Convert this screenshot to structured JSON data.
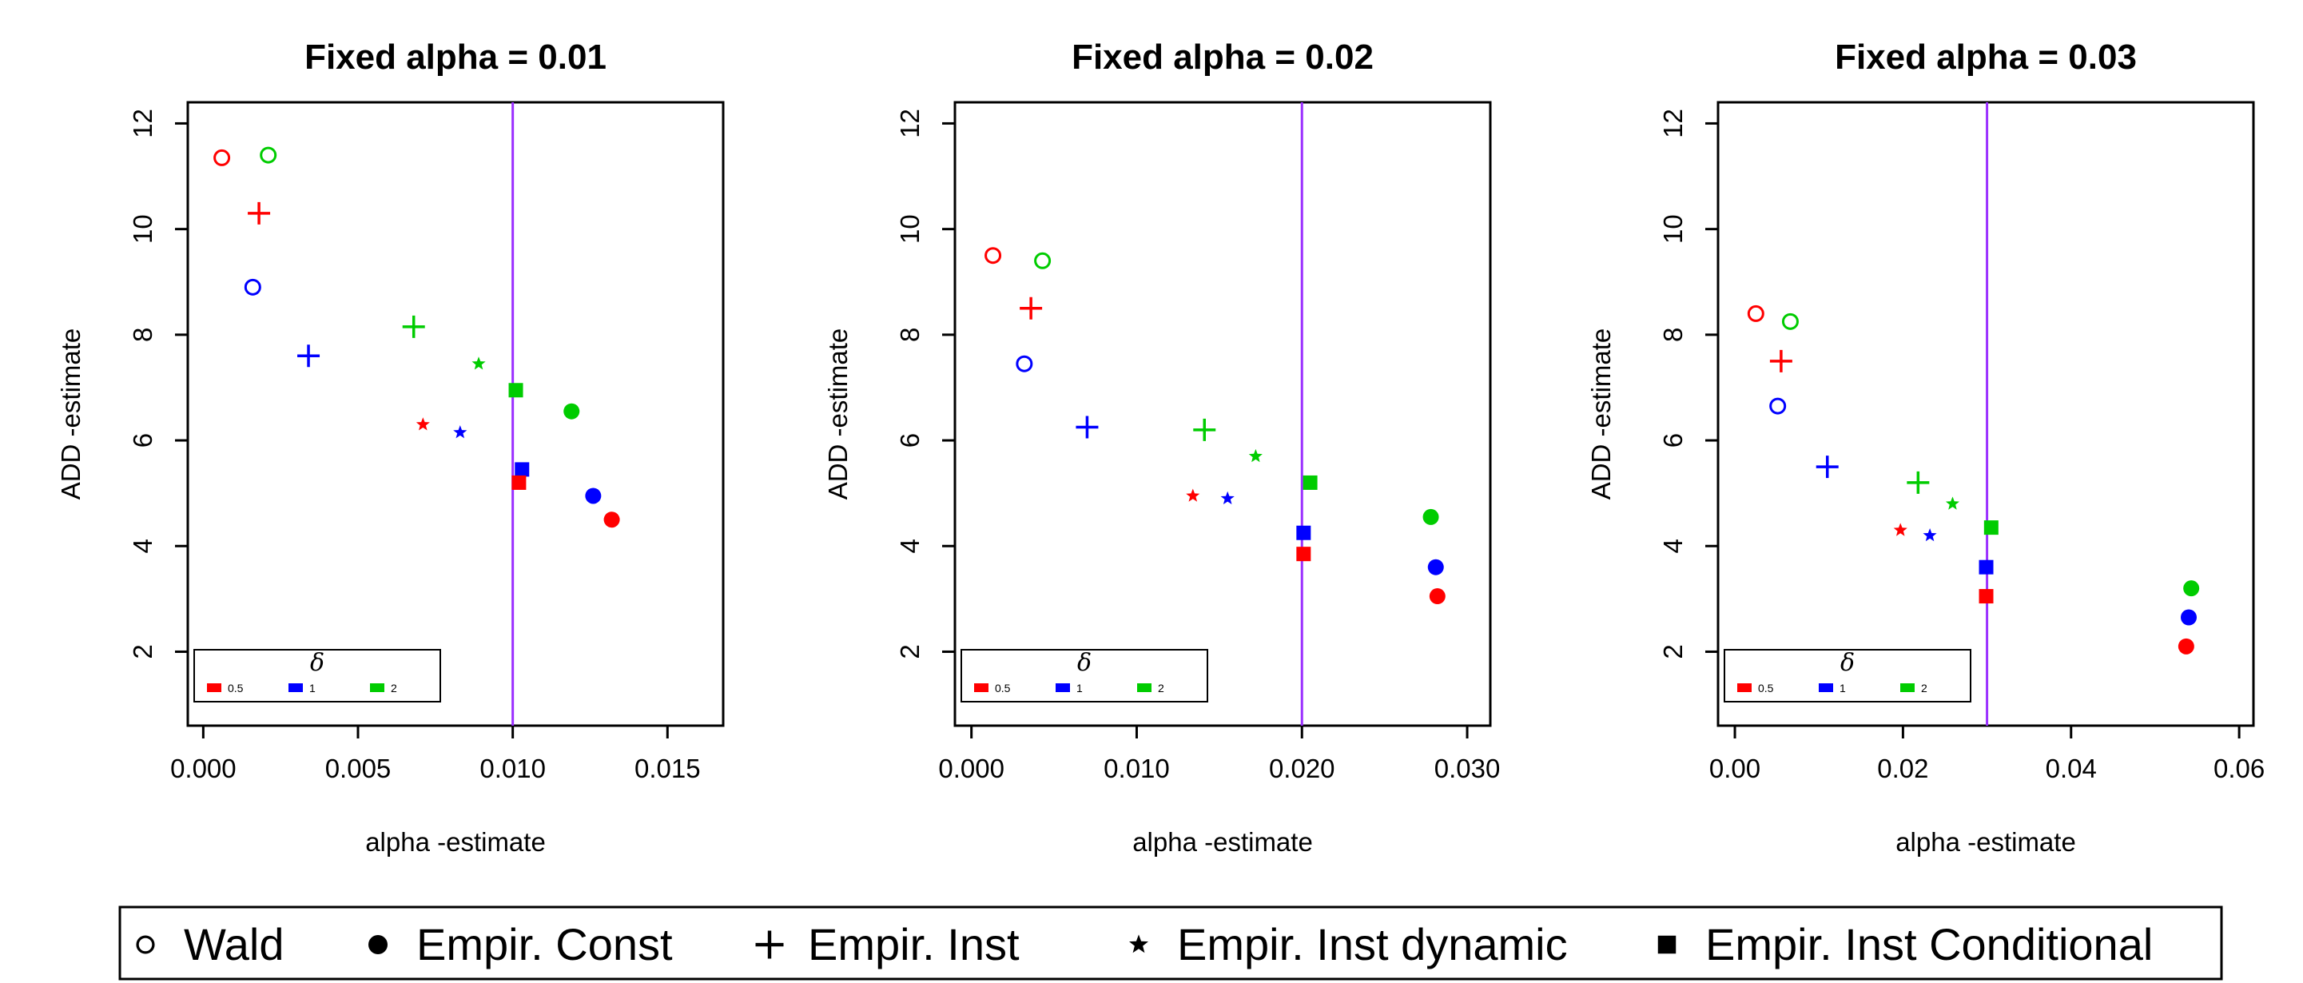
{
  "chart_data": [
    {
      "type": "scatter",
      "title": "Fixed alpha = 0.01",
      "xlabel": "alpha -estimate",
      "ylabel": "ADD -estimate",
      "xlim": [
        -0.0005,
        0.0168
      ],
      "ylim": [
        0.6,
        12.4
      ],
      "xticks": [
        "0.000",
        "0.005",
        "0.010",
        "0.015"
      ],
      "xtick_values": [
        0,
        0.005,
        0.01,
        0.015
      ],
      "yticks": [
        "2",
        "4",
        "6",
        "8",
        "10",
        "12"
      ],
      "ytick_values": [
        2,
        4,
        6,
        8,
        10,
        12
      ],
      "vline": 0.01,
      "points": [
        {
          "method": "Wald",
          "delta": "0.5",
          "x": 0.0006,
          "y": 11.35
        },
        {
          "method": "Wald",
          "delta": "2",
          "x": 0.0021,
          "y": 11.4
        },
        {
          "method": "Wald",
          "delta": "1",
          "x": 0.0016,
          "y": 8.9
        },
        {
          "method": "Empir. Inst",
          "delta": "0.5",
          "x": 0.0018,
          "y": 10.3
        },
        {
          "method": "Empir. Inst",
          "delta": "1",
          "x": 0.0034,
          "y": 7.6
        },
        {
          "method": "Empir. Inst",
          "delta": "2",
          "x": 0.0068,
          "y": 8.15
        },
        {
          "method": "Empir. Inst dynamic",
          "delta": "2",
          "x": 0.0089,
          "y": 7.45
        },
        {
          "method": "Empir. Inst dynamic",
          "delta": "0.5",
          "x": 0.0071,
          "y": 6.3
        },
        {
          "method": "Empir. Inst dynamic",
          "delta": "1",
          "x": 0.0083,
          "y": 6.15
        },
        {
          "method": "Empir. Inst Conditional",
          "delta": "2",
          "x": 0.0101,
          "y": 6.95
        },
        {
          "method": "Empir. Inst Conditional",
          "delta": "1",
          "x": 0.0103,
          "y": 5.45
        },
        {
          "method": "Empir. Inst Conditional",
          "delta": "0.5",
          "x": 0.0102,
          "y": 5.2
        },
        {
          "method": "Empir. Const",
          "delta": "2",
          "x": 0.0119,
          "y": 6.55
        },
        {
          "method": "Empir. Const",
          "delta": "1",
          "x": 0.0126,
          "y": 4.95
        },
        {
          "method": "Empir. Const",
          "delta": "0.5",
          "x": 0.0132,
          "y": 4.5
        }
      ]
    },
    {
      "type": "scatter",
      "title": "Fixed alpha = 0.02",
      "xlabel": "alpha -estimate",
      "ylabel": "ADD -estimate",
      "xlim": [
        -0.001,
        0.0314
      ],
      "ylim": [
        0.6,
        12.4
      ],
      "xticks": [
        "0.000",
        "0.010",
        "0.020",
        "0.030"
      ],
      "xtick_values": [
        0,
        0.01,
        0.02,
        0.03
      ],
      "yticks": [
        "2",
        "4",
        "6",
        "8",
        "10",
        "12"
      ],
      "ytick_values": [
        2,
        4,
        6,
        8,
        10,
        12
      ],
      "vline": 0.02,
      "points": [
        {
          "method": "Wald",
          "delta": "0.5",
          "x": 0.0013,
          "y": 9.5
        },
        {
          "method": "Wald",
          "delta": "2",
          "x": 0.0043,
          "y": 9.4
        },
        {
          "method": "Wald",
          "delta": "1",
          "x": 0.0032,
          "y": 7.45
        },
        {
          "method": "Empir. Inst",
          "delta": "0.5",
          "x": 0.0036,
          "y": 8.5
        },
        {
          "method": "Empir. Inst",
          "delta": "1",
          "x": 0.007,
          "y": 6.25
        },
        {
          "method": "Empir. Inst",
          "delta": "2",
          "x": 0.0141,
          "y": 6.2
        },
        {
          "method": "Empir. Inst dynamic",
          "delta": "2",
          "x": 0.0172,
          "y": 5.7
        },
        {
          "method": "Empir. Inst dynamic",
          "delta": "0.5",
          "x": 0.0134,
          "y": 4.95
        },
        {
          "method": "Empir. Inst dynamic",
          "delta": "1",
          "x": 0.0155,
          "y": 4.9
        },
        {
          "method": "Empir. Inst Conditional",
          "delta": "2",
          "x": 0.0205,
          "y": 5.2
        },
        {
          "method": "Empir. Inst Conditional",
          "delta": "1",
          "x": 0.0201,
          "y": 4.25
        },
        {
          "method": "Empir. Inst Conditional",
          "delta": "0.5",
          "x": 0.0201,
          "y": 3.85
        },
        {
          "method": "Empir. Const",
          "delta": "2",
          "x": 0.0278,
          "y": 4.55
        },
        {
          "method": "Empir. Const",
          "delta": "1",
          "x": 0.0281,
          "y": 3.6
        },
        {
          "method": "Empir. Const",
          "delta": "0.5",
          "x": 0.0282,
          "y": 3.05
        }
      ]
    },
    {
      "type": "scatter",
      "title": "Fixed alpha = 0.03",
      "xlabel": "alpha -estimate",
      "ylabel": "ADD -estimate",
      "xlim": [
        -0.002,
        0.0617
      ],
      "ylim": [
        0.6,
        12.4
      ],
      "xticks": [
        "0.00",
        "0.02",
        "0.04",
        "0.06"
      ],
      "xtick_values": [
        0,
        0.02,
        0.04,
        0.06
      ],
      "yticks": [
        "2",
        "4",
        "6",
        "8",
        "10",
        "12"
      ],
      "ytick_values": [
        2,
        4,
        6,
        8,
        10,
        12
      ],
      "vline": 0.03,
      "points": [
        {
          "method": "Wald",
          "delta": "0.5",
          "x": 0.0025,
          "y": 8.4
        },
        {
          "method": "Wald",
          "delta": "2",
          "x": 0.0066,
          "y": 8.25
        },
        {
          "method": "Wald",
          "delta": "1",
          "x": 0.0051,
          "y": 6.65
        },
        {
          "method": "Empir. Inst",
          "delta": "0.5",
          "x": 0.0055,
          "y": 7.5
        },
        {
          "method": "Empir. Inst",
          "delta": "1",
          "x": 0.011,
          "y": 5.5
        },
        {
          "method": "Empir. Inst",
          "delta": "2",
          "x": 0.0218,
          "y": 5.2
        },
        {
          "method": "Empir. Inst dynamic",
          "delta": "2",
          "x": 0.0259,
          "y": 4.8
        },
        {
          "method": "Empir. Inst dynamic",
          "delta": "0.5",
          "x": 0.0197,
          "y": 4.3
        },
        {
          "method": "Empir. Inst dynamic",
          "delta": "1",
          "x": 0.0232,
          "y": 4.2
        },
        {
          "method": "Empir. Inst Conditional",
          "delta": "2",
          "x": 0.0305,
          "y": 4.35
        },
        {
          "method": "Empir. Inst Conditional",
          "delta": "1",
          "x": 0.0299,
          "y": 3.6
        },
        {
          "method": "Empir. Inst Conditional",
          "delta": "0.5",
          "x": 0.0299,
          "y": 3.05
        },
        {
          "method": "Empir. Const",
          "delta": "2",
          "x": 0.0543,
          "y": 3.2
        },
        {
          "method": "Empir. Const",
          "delta": "1",
          "x": 0.054,
          "y": 2.65
        },
        {
          "method": "Empir. Const",
          "delta": "0.5",
          "x": 0.0537,
          "y": 2.1
        }
      ]
    }
  ],
  "delta_legend": {
    "title": "δ",
    "entries": [
      {
        "label": "0.5",
        "color": "#ff0000"
      },
      {
        "label": "1",
        "color": "#0000ff"
      },
      {
        "label": "2",
        "color": "#00cc00"
      }
    ]
  },
  "method_legend": [
    {
      "label": "Wald",
      "symbol": "open-circle"
    },
    {
      "label": "Empir. Const",
      "symbol": "filled-circle"
    },
    {
      "label": "Empir. Inst",
      "symbol": "plus"
    },
    {
      "label": "Empir. Inst dynamic",
      "symbol": "star"
    },
    {
      "label": "Empir. Inst Conditional",
      "symbol": "filled-square"
    }
  ],
  "colors": {
    "0.5": "#ff0000",
    "1": "#0000ff",
    "2": "#00cc00",
    "vline": "#9b30ff"
  }
}
